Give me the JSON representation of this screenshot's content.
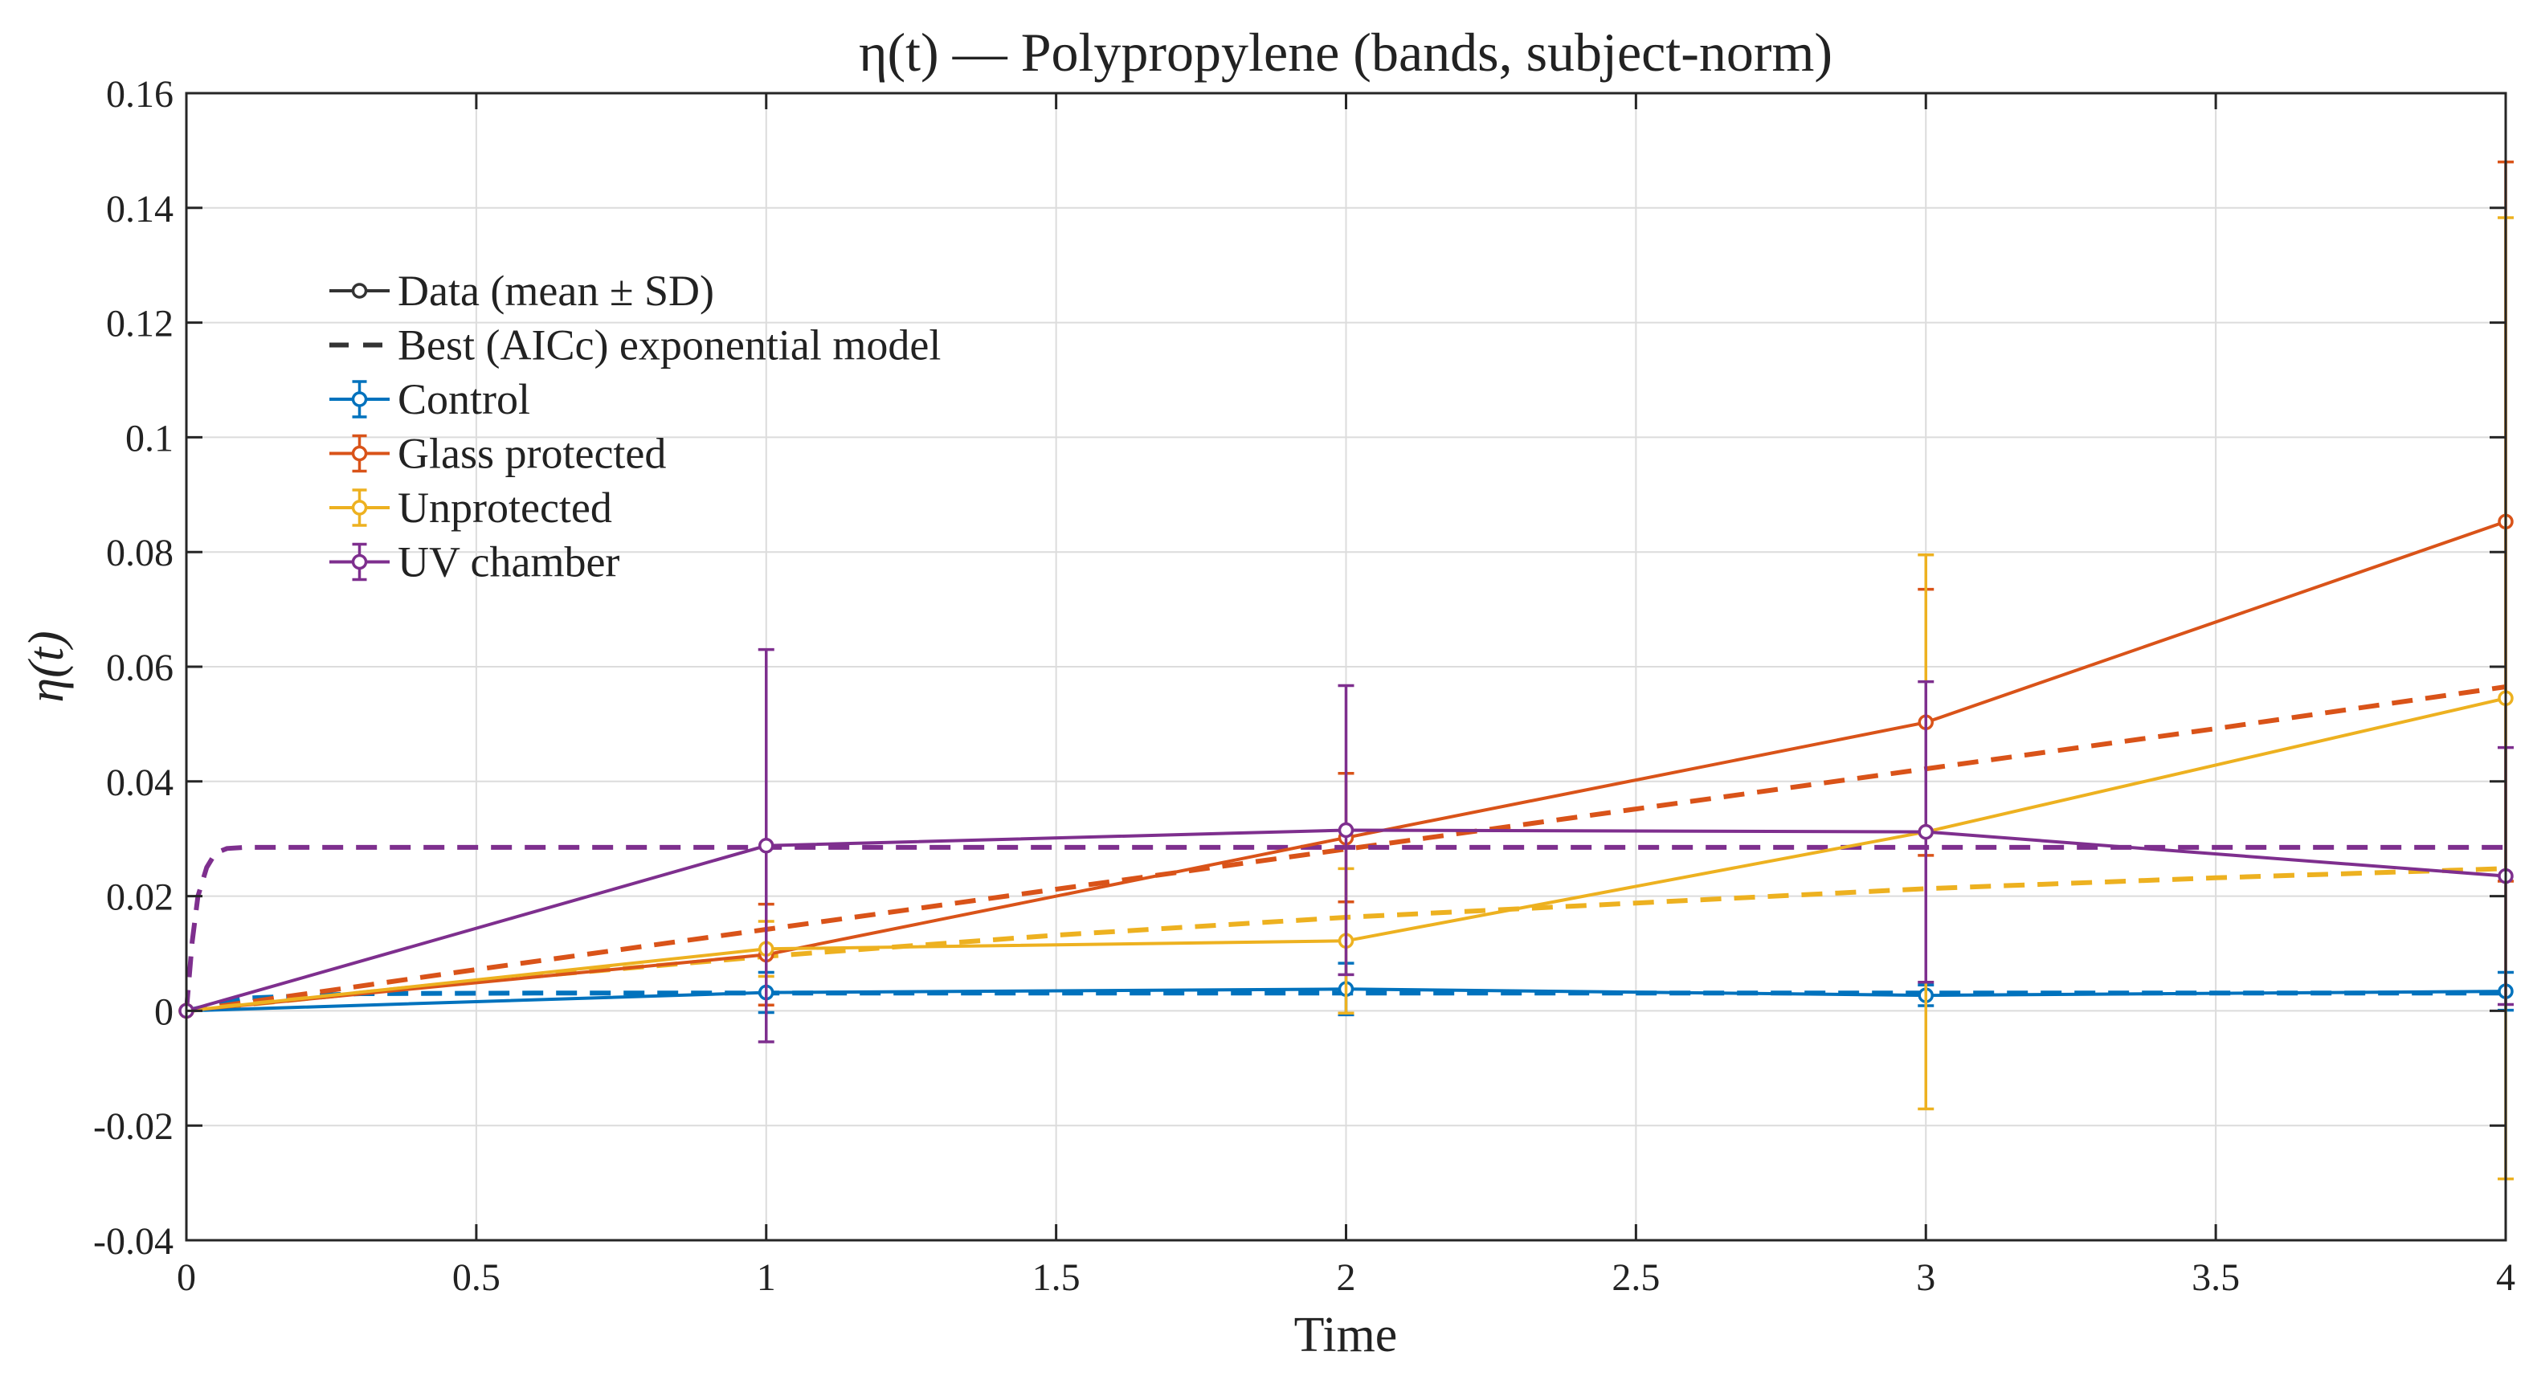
{
  "chart_data": {
    "type": "line",
    "title": "η(t) — Polypropylene (bands, subject-norm)",
    "xlabel": "Time",
    "ylabel": "η(t)",
    "xlim": [
      0,
      4
    ],
    "ylim": [
      -0.04,
      0.16
    ],
    "xticks": [
      0,
      0.5,
      1,
      1.5,
      2,
      2.5,
      3,
      3.5,
      4
    ],
    "xtick_labels": [
      "0",
      "0.5",
      "1",
      "1.5",
      "2",
      "2.5",
      "3",
      "3.5",
      "4"
    ],
    "yticks": [
      -0.04,
      -0.02,
      0,
      0.02,
      0.04,
      0.06,
      0.08,
      0.1,
      0.12,
      0.14,
      0.16
    ],
    "ytick_labels": [
      "-0.04",
      "-0.02",
      "0",
      "0.02",
      "0.04",
      "0.06",
      "0.08",
      "0.1",
      "0.12",
      "0.14",
      "0.16"
    ],
    "grid": true,
    "legend_position": "top-left",
    "legend": [
      {
        "label": "Data (mean ± SD)",
        "style": "marker-line",
        "color": "#333333"
      },
      {
        "label": "Best (AICc) exponential model",
        "style": "dashed",
        "color": "#333333"
      },
      {
        "label": "Control",
        "style": "errorbar",
        "color": "#0072BD"
      },
      {
        "label": "Glass protected",
        "style": "errorbar",
        "color": "#D95319"
      },
      {
        "label": "Unprotected",
        "style": "errorbar",
        "color": "#EDB120"
      },
      {
        "label": "UV chamber",
        "style": "errorbar",
        "color": "#7E2F8E"
      }
    ],
    "series": [
      {
        "name": "Control",
        "color": "#0072BD",
        "x": [
          0,
          1,
          2,
          3,
          4
        ],
        "y": [
          0,
          0.0032,
          0.0038,
          0.0027,
          0.0034
        ],
        "sd": [
          0,
          0.0035,
          0.0045,
          0.0018,
          0.0033
        ],
        "model": {
          "x": [
            0,
            0.1,
            0.3,
            0.6,
            1,
            1.5,
            2,
            2.5,
            3,
            3.5,
            4
          ],
          "y": [
            0,
            0.0022,
            0.003,
            0.0031,
            0.0031,
            0.0031,
            0.0031,
            0.0031,
            0.0031,
            0.0031,
            0.0031
          ]
        }
      },
      {
        "name": "Glass protected",
        "color": "#D95319",
        "x": [
          0,
          1,
          2,
          3,
          4
        ],
        "y": [
          0,
          0.0098,
          0.0302,
          0.0503,
          0.0853
        ],
        "sd": [
          0,
          0.0088,
          0.0112,
          0.0232,
          0.0627
        ],
        "model": {
          "x": [
            0,
            0.5,
            1,
            1.5,
            2,
            2.5,
            3,
            3.5,
            4
          ],
          "y": [
            0,
            0.0072,
            0.0142,
            0.0212,
            0.0282,
            0.0352,
            0.0422,
            0.0492,
            0.0565
          ]
        }
      },
      {
        "name": "Unprotected",
        "color": "#EDB120",
        "x": [
          0,
          1,
          2,
          3,
          4
        ],
        "y": [
          0,
          0.0108,
          0.0122,
          0.0312,
          0.0545
        ],
        "sd": [
          0,
          0.0048,
          0.0126,
          0.0483,
          0.0838
        ],
        "model": {
          "x": [
            0,
            0.5,
            1,
            1.5,
            2,
            2.5,
            3,
            3.5,
            4
          ],
          "y": [
            0,
            0.0052,
            0.0095,
            0.0132,
            0.0163,
            0.0188,
            0.0213,
            0.0232,
            0.0248
          ]
        }
      },
      {
        "name": "UV chamber",
        "color": "#7E2F8E",
        "x": [
          0,
          1,
          2,
          3,
          4
        ],
        "y": [
          0,
          0.0288,
          0.0315,
          0.0312,
          0.0235
        ],
        "sd": [
          0,
          0.0342,
          0.0252,
          0.0262,
          0.0224
        ],
        "model": {
          "x": [
            0,
            0.01,
            0.02,
            0.035,
            0.05,
            0.07,
            0.1,
            0.5,
            1,
            2,
            3,
            4
          ],
          "y": [
            0,
            0.012,
            0.02,
            0.025,
            0.0275,
            0.0283,
            0.0285,
            0.0285,
            0.0285,
            0.0285,
            0.0285,
            0.0285
          ]
        }
      }
    ]
  }
}
